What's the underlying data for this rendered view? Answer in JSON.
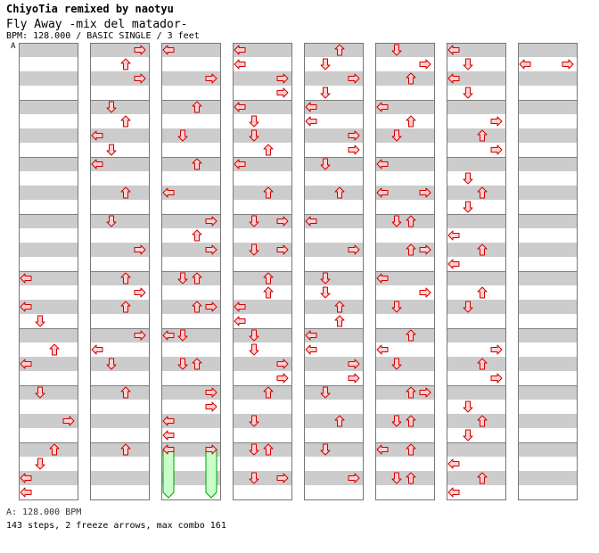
{
  "header": {
    "title": "ChiyoTia remixed by naotyu",
    "subtitle": "Fly Away -mix del matador-",
    "info": "BPM: 128.000 / BASIC SINGLE / 3 feet",
    "marker": "A"
  },
  "footer": {
    "bpm_line": "A: 128.000 BPM",
    "stats_line": "143 steps, 2 freeze arrows, max combo 161"
  },
  "colors": {
    "arrow_fill": "#ffd0d0",
    "arrow_stroke": "#d00000",
    "freeze_fill": "#c8ffc8",
    "freeze_stroke": "#00a000",
    "stripe": "#cccccc"
  },
  "chart_data": {
    "type": "step-chart",
    "lanes": [
      "left",
      "down",
      "up",
      "right"
    ],
    "columns": 8,
    "measures_per_column": 8,
    "rows_per_measure": 4,
    "notes": [
      [
        0,
        4,
        0,
        0
      ],
      [
        0,
        4,
        2,
        0
      ],
      [
        0,
        4,
        3,
        1
      ],
      [
        0,
        5,
        1,
        2
      ],
      [
        0,
        5,
        2,
        0
      ],
      [
        0,
        6,
        0,
        1
      ],
      [
        0,
        6,
        2,
        3
      ],
      [
        0,
        7,
        0,
        2
      ],
      [
        0,
        7,
        1,
        1
      ],
      [
        0,
        7,
        2,
        0
      ],
      [
        0,
        7,
        3,
        0
      ],
      [
        1,
        0,
        0,
        3
      ],
      [
        1,
        0,
        1,
        2
      ],
      [
        1,
        0,
        2,
        3
      ],
      [
        1,
        1,
        0,
        1
      ],
      [
        1,
        1,
        1,
        2
      ],
      [
        1,
        1,
        2,
        0
      ],
      [
        1,
        1,
        3,
        1
      ],
      [
        1,
        2,
        0,
        0
      ],
      [
        1,
        2,
        2,
        2
      ],
      [
        1,
        3,
        0,
        1
      ],
      [
        1,
        3,
        2,
        3
      ],
      [
        1,
        4,
        0,
        2
      ],
      [
        1,
        4,
        1,
        3
      ],
      [
        1,
        4,
        2,
        2
      ],
      [
        1,
        5,
        0,
        3
      ],
      [
        1,
        5,
        1,
        0
      ],
      [
        1,
        5,
        2,
        1
      ],
      [
        1,
        6,
        0,
        2
      ],
      [
        1,
        7,
        0,
        2
      ],
      [
        2,
        0,
        0,
        0
      ],
      [
        2,
        0,
        2,
        3
      ],
      [
        2,
        1,
        0,
        2
      ],
      [
        2,
        1,
        2,
        1
      ],
      [
        2,
        2,
        0,
        2
      ],
      [
        2,
        2,
        2,
        0
      ],
      [
        2,
        3,
        0,
        3
      ],
      [
        2,
        3,
        1,
        2
      ],
      [
        2,
        3,
        2,
        3
      ],
      [
        2,
        4,
        0,
        1
      ],
      [
        2,
        4,
        0,
        2
      ],
      [
        2,
        4,
        2,
        2
      ],
      [
        2,
        4,
        2,
        3
      ],
      [
        2,
        5,
        0,
        0
      ],
      [
        2,
        5,
        0,
        1
      ],
      [
        2,
        5,
        2,
        1
      ],
      [
        2,
        5,
        2,
        2
      ],
      [
        2,
        6,
        0,
        3
      ],
      [
        2,
        6,
        1,
        3
      ],
      [
        2,
        6,
        2,
        0
      ],
      [
        2,
        6,
        3,
        0
      ],
      [
        2,
        7,
        0,
        0
      ],
      [
        2,
        7,
        0,
        3
      ],
      [
        3,
        0,
        0,
        0
      ],
      [
        3,
        0,
        1,
        0
      ],
      [
        3,
        0,
        2,
        3
      ],
      [
        3,
        0,
        3,
        3
      ],
      [
        3,
        1,
        0,
        0
      ],
      [
        3,
        1,
        1,
        1
      ],
      [
        3,
        1,
        2,
        1
      ],
      [
        3,
        1,
        3,
        2
      ],
      [
        3,
        2,
        0,
        0
      ],
      [
        3,
        2,
        2,
        2
      ],
      [
        3,
        3,
        0,
        1
      ],
      [
        3,
        3,
        0,
        3
      ],
      [
        3,
        3,
        2,
        1
      ],
      [
        3,
        3,
        2,
        3
      ],
      [
        3,
        4,
        0,
        2
      ],
      [
        3,
        4,
        1,
        2
      ],
      [
        3,
        4,
        2,
        0
      ],
      [
        3,
        4,
        3,
        0
      ],
      [
        3,
        5,
        0,
        1
      ],
      [
        3,
        5,
        1,
        1
      ],
      [
        3,
        5,
        2,
        3
      ],
      [
        3,
        5,
        3,
        3
      ],
      [
        3,
        6,
        0,
        2
      ],
      [
        3,
        6,
        2,
        1
      ],
      [
        3,
        7,
        0,
        1
      ],
      [
        3,
        7,
        0,
        2
      ],
      [
        3,
        7,
        2,
        1
      ],
      [
        3,
        7,
        2,
        3
      ],
      [
        4,
        0,
        0,
        2
      ],
      [
        4,
        0,
        1,
        1
      ],
      [
        4,
        0,
        2,
        3
      ],
      [
        4,
        0,
        3,
        1
      ],
      [
        4,
        1,
        0,
        0
      ],
      [
        4,
        1,
        1,
        0
      ],
      [
        4,
        1,
        2,
        3
      ],
      [
        4,
        1,
        3,
        3
      ],
      [
        4,
        2,
        0,
        1
      ],
      [
        4,
        2,
        2,
        2
      ],
      [
        4,
        3,
        0,
        0
      ],
      [
        4,
        3,
        2,
        3
      ],
      [
        4,
        4,
        0,
        1
      ],
      [
        4,
        4,
        1,
        1
      ],
      [
        4,
        4,
        2,
        2
      ],
      [
        4,
        4,
        3,
        2
      ],
      [
        4,
        5,
        0,
        0
      ],
      [
        4,
        5,
        1,
        0
      ],
      [
        4,
        5,
        2,
        3
      ],
      [
        4,
        5,
        3,
        3
      ],
      [
        4,
        6,
        0,
        1
      ],
      [
        4,
        6,
        2,
        2
      ],
      [
        4,
        7,
        0,
        1
      ],
      [
        4,
        7,
        2,
        3
      ],
      [
        5,
        0,
        0,
        1
      ],
      [
        5,
        0,
        1,
        3
      ],
      [
        5,
        0,
        2,
        2
      ],
      [
        5,
        1,
        0,
        0
      ],
      [
        5,
        1,
        1,
        2
      ],
      [
        5,
        1,
        2,
        1
      ],
      [
        5,
        2,
        0,
        0
      ],
      [
        5,
        2,
        2,
        0
      ],
      [
        5,
        2,
        2,
        3
      ],
      [
        5,
        3,
        0,
        1
      ],
      [
        5,
        3,
        0,
        2
      ],
      [
        5,
        3,
        2,
        2
      ],
      [
        5,
        3,
        2,
        3
      ],
      [
        5,
        4,
        0,
        0
      ],
      [
        5,
        4,
        1,
        3
      ],
      [
        5,
        4,
        2,
        1
      ],
      [
        5,
        5,
        0,
        2
      ],
      [
        5,
        5,
        1,
        0
      ],
      [
        5,
        5,
        2,
        1
      ],
      [
        5,
        6,
        0,
        2
      ],
      [
        5,
        6,
        0,
        3
      ],
      [
        5,
        6,
        2,
        1
      ],
      [
        5,
        6,
        2,
        2
      ],
      [
        5,
        7,
        0,
        0
      ],
      [
        5,
        7,
        0,
        2
      ],
      [
        5,
        7,
        2,
        1
      ],
      [
        5,
        7,
        2,
        2
      ],
      [
        6,
        0,
        0,
        0
      ],
      [
        6,
        0,
        1,
        1
      ],
      [
        6,
        0,
        2,
        0
      ],
      [
        6,
        0,
        3,
        1
      ],
      [
        6,
        1,
        1,
        3
      ],
      [
        6,
        1,
        2,
        2
      ],
      [
        6,
        1,
        3,
        3
      ],
      [
        6,
        2,
        1,
        1
      ],
      [
        6,
        2,
        2,
        2
      ],
      [
        6,
        2,
        3,
        1
      ],
      [
        6,
        3,
        1,
        0
      ],
      [
        6,
        3,
        2,
        2
      ],
      [
        6,
        3,
        3,
        0
      ],
      [
        6,
        4,
        1,
        2
      ],
      [
        6,
        4,
        2,
        1
      ],
      [
        6,
        5,
        1,
        3
      ],
      [
        6,
        5,
        2,
        2
      ],
      [
        6,
        5,
        3,
        3
      ],
      [
        6,
        6,
        1,
        1
      ],
      [
        6,
        6,
        2,
        2
      ],
      [
        6,
        6,
        3,
        1
      ],
      [
        6,
        7,
        1,
        0
      ],
      [
        6,
        7,
        2,
        2
      ],
      [
        6,
        7,
        3,
        0
      ],
      [
        7,
        0,
        1,
        0
      ],
      [
        7,
        0,
        1,
        3
      ]
    ],
    "freezes": [
      {
        "column": 2,
        "measure": 7,
        "lane": 0,
        "start_row": 0,
        "end_row": 3
      },
      {
        "column": 2,
        "measure": 7,
        "lane": 3,
        "start_row": 0,
        "end_row": 3
      }
    ]
  }
}
